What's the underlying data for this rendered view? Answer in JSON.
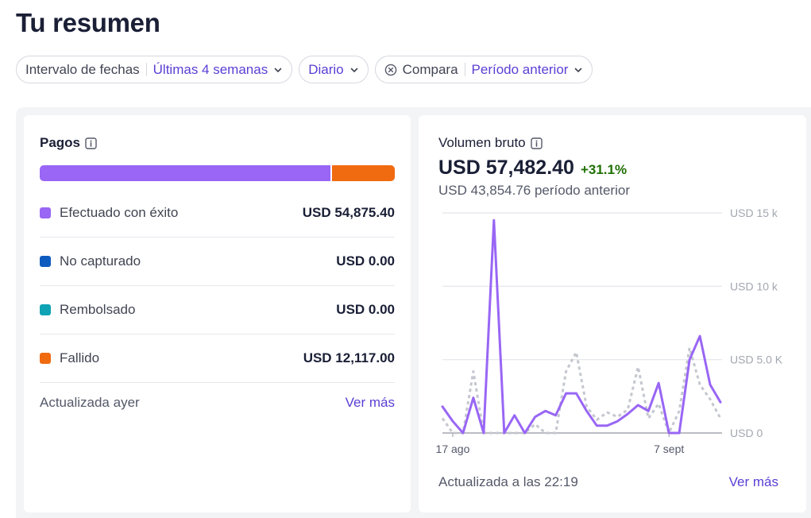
{
  "header": {
    "title": "Tu resumen"
  },
  "filters": {
    "date_range": {
      "label": "Intervalo de fechas",
      "value": "Últimas 4 semanas"
    },
    "granularity": {
      "value": "Diario"
    },
    "compare": {
      "label": "Compara",
      "value": "Período anterior"
    }
  },
  "payments": {
    "title": "Pagos",
    "items": [
      {
        "label": "Efectuado con éxito",
        "value": "USD 54,875.40",
        "color": "#9966f5",
        "amount": 54875.4
      },
      {
        "label": "No capturado",
        "value": "USD 0.00",
        "color": "#0d5bbf",
        "amount": 0
      },
      {
        "label": "Rembolsado",
        "value": "USD 0.00",
        "color": "#0fa3b5",
        "amount": 0
      },
      {
        "label": "Fallido",
        "value": "USD 12,117.00",
        "color": "#f06a10",
        "amount": 12117.0
      }
    ],
    "updated": "Actualizada ayer",
    "more": "Ver más"
  },
  "gross_volume": {
    "title": "Volumen bruto",
    "amount": "USD 57,482.40",
    "change": "+31.1%",
    "previous": "USD 43,854.76 período anterior",
    "updated": "Actualizada a las 22:19",
    "more": "Ver más"
  },
  "chart_data": {
    "type": "line",
    "ylim": [
      0,
      15000
    ],
    "y_ticks": [
      {
        "value": 0,
        "label": "USD 0"
      },
      {
        "value": 5000,
        "label": "USD 5.0 K"
      },
      {
        "value": 10000,
        "label": "USD 10 k"
      },
      {
        "value": 15000,
        "label": "USD 15 k"
      }
    ],
    "x_ticks": [
      {
        "index": 1,
        "label": "17 ago"
      },
      {
        "index": 22,
        "label": "7 sept"
      }
    ],
    "colors": {
      "current": "#9966f5",
      "previous": "#c4c7cf",
      "grid": "#e3e5e9",
      "axis": "#a3a7b0"
    },
    "series": [
      {
        "values": [
          1800,
          800,
          0,
          2400,
          0,
          14500,
          0,
          1200,
          0,
          1100,
          1500,
          1200,
          2700,
          2700,
          1500,
          500,
          500,
          800,
          1300,
          1900,
          1500,
          3400,
          0,
          0,
          5000,
          6600,
          3300,
          2100
        ]
      },
      {
        "values": [
          1000,
          0,
          0,
          4200,
          0,
          0,
          0,
          0,
          0,
          600,
          0,
          0,
          4200,
          5500,
          1800,
          900,
          1400,
          1100,
          1600,
          4500,
          1000,
          2000,
          0,
          1500,
          5800,
          3300,
          2300,
          1000
        ]
      }
    ]
  }
}
